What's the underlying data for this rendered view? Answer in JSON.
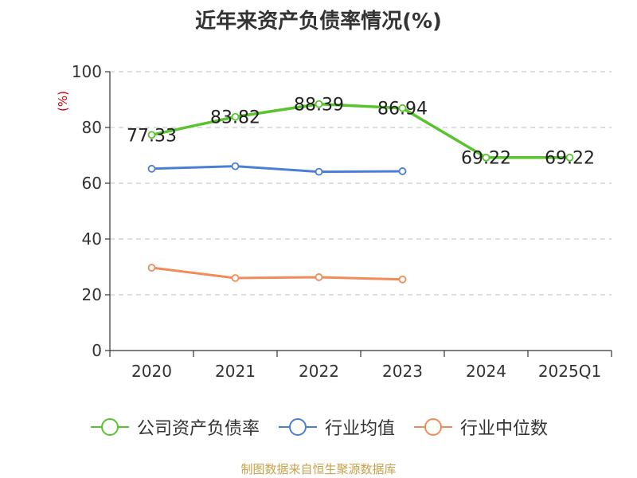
{
  "chart_data": {
    "type": "line",
    "title": "近年来资产负债率情况(%)",
    "unit_label": "(%)",
    "categories": [
      "2020",
      "2021",
      "2022",
      "2023",
      "2024",
      "2025Q1"
    ],
    "ylim": [
      0,
      100
    ],
    "yticks": [
      "0",
      "20",
      "40",
      "60",
      "80",
      "100"
    ],
    "grid": true,
    "legend_position": "bottom",
    "series": [
      {
        "name": "公司资产负债率",
        "color": "#5ac42e",
        "values": [
          77.33,
          83.82,
          88.39,
          86.94,
          69.22,
          69.22
        ],
        "labels": [
          "77.33",
          "83.82",
          "88.39",
          "86.94",
          "69.22",
          "69.22"
        ]
      },
      {
        "name": "行业均值",
        "color": "#4a7fd6",
        "values": [
          65.2,
          66.1,
          64.1,
          64.3,
          null,
          null
        ]
      },
      {
        "name": "行业中位数",
        "color": "#f28b5a",
        "values": [
          29.7,
          26.0,
          26.3,
          25.5,
          null,
          null
        ]
      }
    ]
  },
  "footer": {
    "source": "制图数据来自恒生聚源数据库"
  }
}
